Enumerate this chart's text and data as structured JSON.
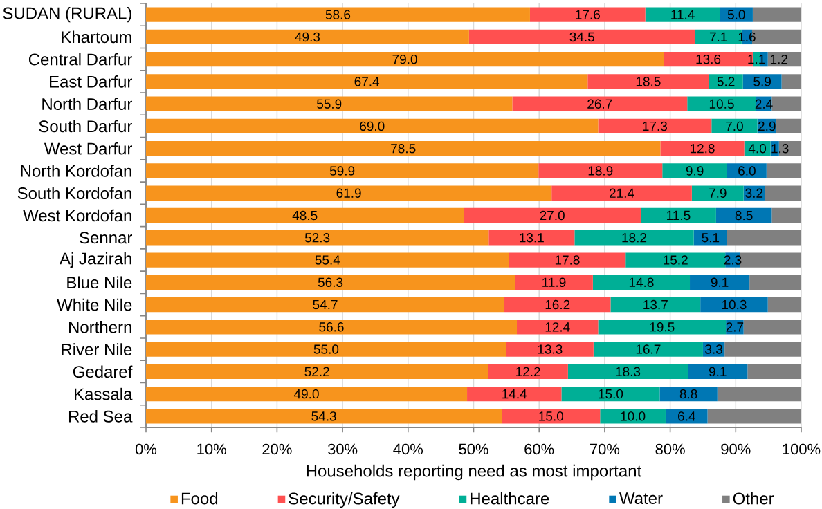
{
  "chart_data": {
    "type": "bar",
    "orientation": "horizontal",
    "stacked": true,
    "xlabel": "Households reporting need as most important",
    "categories": [
      "SUDAN (RURAL)",
      "Khartoum",
      "Central Darfur",
      "East Darfur",
      "North Darfur",
      "South Darfur",
      "West Darfur",
      "North Kordofan",
      "South Kordofan",
      "West Kordofan",
      "Sennar",
      "Aj Jazirah",
      "Blue Nile",
      "White Nile",
      "Northern",
      "River Nile",
      "Gedaref",
      "Kassala",
      "Red Sea"
    ],
    "series": [
      {
        "name": "Food",
        "color": "#f7941d",
        "values": [
          58.6,
          49.3,
          79.0,
          67.4,
          55.9,
          69.0,
          78.5,
          59.9,
          61.9,
          48.5,
          52.3,
          55.4,
          56.3,
          54.7,
          56.6,
          55.0,
          52.2,
          49.0,
          54.3
        ],
        "value_labels": [
          "58.6",
          "49.3",
          "79.0",
          "67.4",
          "55.9",
          "69.0",
          "78.5",
          "59.9",
          "61.9",
          "48.5",
          "52.3",
          "55.4",
          "56.3",
          "54.7",
          "56.6",
          "55.0",
          "52.2",
          "49.0",
          "54.3"
        ]
      },
      {
        "name": "Security/Safety",
        "color": "#ff5050",
        "values": [
          17.6,
          34.5,
          13.6,
          18.5,
          26.7,
          17.3,
          12.8,
          18.9,
          21.4,
          27.0,
          13.1,
          17.8,
          11.9,
          16.2,
          12.4,
          13.3,
          12.2,
          14.4,
          15.0
        ],
        "value_labels": [
          "17.6",
          "34.5",
          "13.6",
          "18.5",
          "26.7",
          "17.3",
          "12.8",
          "18.9",
          "21.4",
          "27.0",
          "13.1",
          "17.8",
          "11.9",
          "16.2",
          "12.4",
          "13.3",
          "12.2",
          "14.4",
          "15.0"
        ]
      },
      {
        "name": "Healthcare",
        "color": "#00af96",
        "values": [
          11.4,
          7.1,
          1.1,
          5.2,
          10.5,
          7.0,
          4.0,
          9.9,
          7.9,
          11.5,
          18.2,
          15.2,
          14.8,
          13.7,
          19.5,
          16.7,
          18.3,
          15.0,
          10.0
        ],
        "value_labels": [
          "11.4",
          "7.1",
          "1.1",
          "5.2",
          "10.5",
          "7.0",
          "4.0",
          "9.9",
          "7.9",
          "11.5",
          "18.2",
          "15.2",
          "14.8",
          "13.7",
          "19.5",
          "16.7",
          "18.3",
          "15.0",
          "10.0"
        ]
      },
      {
        "name": "Water",
        "color": "#0077b4",
        "values": [
          5.0,
          1.6,
          1.2,
          5.9,
          2.4,
          2.9,
          1.3,
          6.0,
          3.2,
          8.5,
          5.1,
          2.3,
          9.1,
          10.3,
          2.7,
          3.3,
          9.1,
          8.8,
          6.4
        ],
        "value_labels": [
          "5.0",
          "1.6",
          "1.2",
          "5.9",
          "2.4",
          "2.9",
          "1.3",
          "6.0",
          "3.2",
          "8.5",
          "5.1",
          "2.3",
          "9.1",
          "10.3",
          "2.7",
          "3.3",
          "9.1",
          "8.8",
          "6.4"
        ]
      },
      {
        "name": "Other",
        "color": "#808080",
        "values": [
          7.4,
          7.5,
          5.1,
          3.0,
          4.5,
          3.8,
          3.4,
          5.3,
          5.6,
          4.5,
          11.3,
          9.3,
          7.9,
          5.1,
          8.8,
          11.7,
          8.2,
          12.8,
          14.3
        ]
      }
    ],
    "xlim": [
      0,
      100
    ],
    "xticks": [
      {
        "value": 0,
        "label": "0%"
      },
      {
        "value": 10,
        "label": "10%"
      },
      {
        "value": 20,
        "label": "20%"
      },
      {
        "value": 30,
        "label": "30%"
      },
      {
        "value": 40,
        "label": "40%"
      },
      {
        "value": 50,
        "label": "50%"
      },
      {
        "value": 60,
        "label": "60%"
      },
      {
        "value": 70,
        "label": "70%"
      },
      {
        "value": 80,
        "label": "80%"
      },
      {
        "value": 90,
        "label": "90%"
      },
      {
        "value": 100,
        "label": "100%"
      }
    ],
    "grid": "x",
    "legend": "bottom"
  }
}
